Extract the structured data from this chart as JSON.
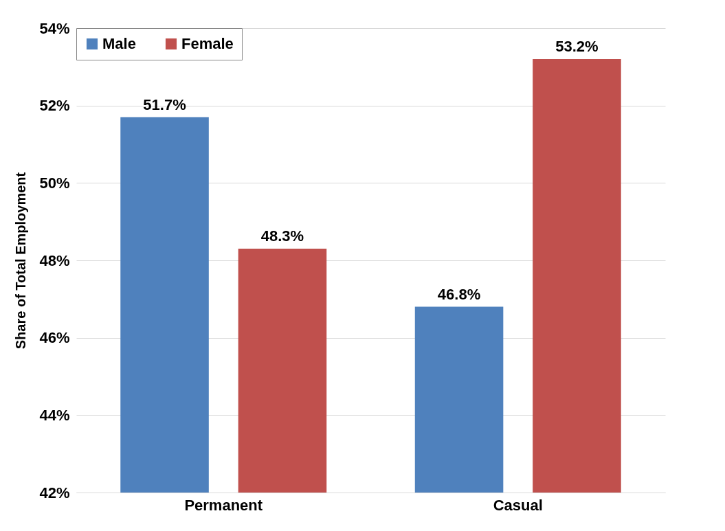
{
  "chart_data": {
    "type": "bar",
    "ylabel": "Share of Total Employment",
    "categories": [
      "Permanent",
      "Casual"
    ],
    "series": [
      {
        "name": "Male",
        "color": "#4f81bd",
        "values": [
          51.7,
          46.8
        ],
        "value_labels": [
          "51.7%",
          "46.8%"
        ]
      },
      {
        "name": "Female",
        "color": "#c0504d",
        "values": [
          48.3,
          53.2
        ],
        "value_labels": [
          "48.3%",
          "53.2%"
        ]
      }
    ],
    "ylim": [
      42,
      54
    ],
    "yticks": [
      {
        "value": 42,
        "label": "42%"
      },
      {
        "value": 44,
        "label": "44%"
      },
      {
        "value": 46,
        "label": "46%"
      },
      {
        "value": 48,
        "label": "48%"
      },
      {
        "value": 50,
        "label": "50%"
      },
      {
        "value": 52,
        "label": "52%"
      },
      {
        "value": 54,
        "label": "54%"
      }
    ],
    "grid": "y",
    "legend": "top left"
  }
}
